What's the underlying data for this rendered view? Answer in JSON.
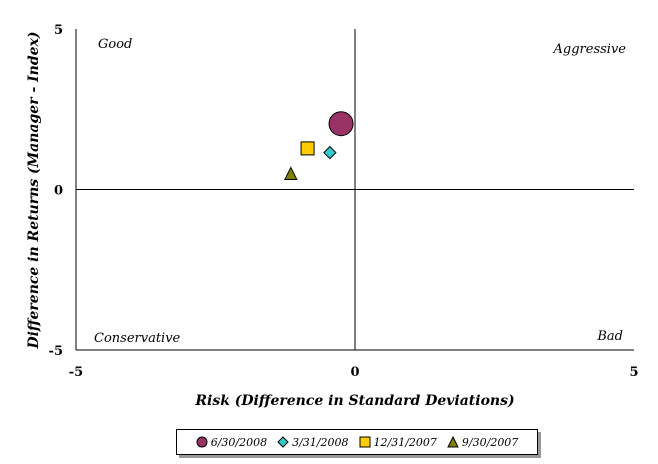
{
  "chart_data": {
    "type": "scatter",
    "xlabel": "Risk (Difference in Standard Deviations)",
    "ylabel": "Difference in Returns (Manager - Index)",
    "xlim": [
      -5,
      5
    ],
    "ylim": [
      -5,
      5
    ],
    "x_ticks": [
      "-5",
      "0",
      "5"
    ],
    "y_ticks": [
      "5",
      "0",
      "-5"
    ],
    "grid": false,
    "legend_position": "bottom",
    "quadrant_labels": {
      "top_left": "Good",
      "top_right": "Aggressive",
      "bottom_left": "Conservative",
      "bottom_right": "Bad"
    },
    "series": [
      {
        "name": "6/30/2008",
        "x": -0.25,
        "y": 2.05,
        "marker": "circle",
        "color": "#993366"
      },
      {
        "name": "3/31/2008",
        "x": -0.45,
        "y": 1.15,
        "marker": "diamond",
        "color": "#33CCCC"
      },
      {
        "name": "12/31/2007",
        "x": -0.85,
        "y": 1.28,
        "marker": "square",
        "color": "#FFCC00"
      },
      {
        "name": "9/30/2007",
        "x": -1.15,
        "y": 0.5,
        "marker": "triangle",
        "color": "#808000"
      }
    ]
  }
}
